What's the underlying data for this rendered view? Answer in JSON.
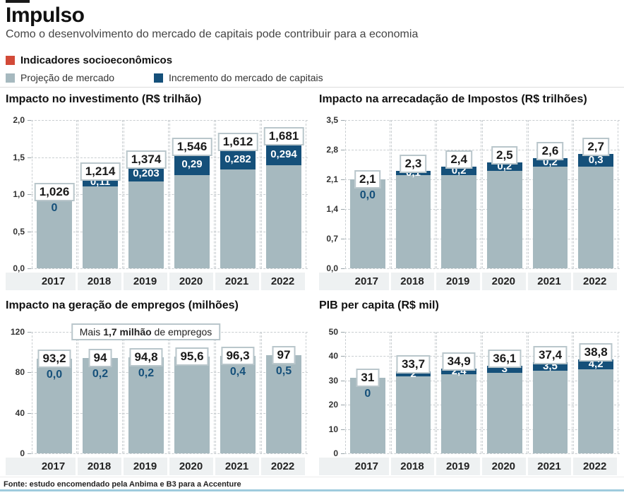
{
  "header": {
    "title": "Impulso",
    "subtitle": "Como o desenvolvimento do mercado de capitais pode contribuir para a economia"
  },
  "legend": {
    "section_label": "Indicadores socioeconômicos",
    "section_color": "#d24a38",
    "items": [
      {
        "label": "Projeção de mercado",
        "color": "#a6b9bf"
      },
      {
        "label": "Incremento do mercado de capitais",
        "color": "#15507a"
      }
    ]
  },
  "colors": {
    "market_projection": "#a6b9bf",
    "capital_market_increment": "#15507a",
    "section_red": "#d24a38",
    "axis_band": "#eef1f2",
    "label_box_border": "#b9c6cb",
    "gridline": "#c9ced1",
    "footer_rule": "#9fcbdd"
  },
  "chart_data": [
    {
      "type": "bar",
      "stacked": true,
      "title": "Impacto no investimento (R$ trilhão)",
      "categories": [
        "2017",
        "2018",
        "2019",
        "2020",
        "2021",
        "2022"
      ],
      "ymax": 2.0,
      "ytick_values": [
        2.0,
        1.5,
        1.0,
        0.5,
        0.0
      ],
      "ytick_labels": [
        "2,0",
        "1,5",
        "1,0",
        "0,5",
        "0,0"
      ],
      "series": [
        {
          "name": "Projeção de mercado",
          "values": [
            1.026,
            1.104,
            1.171,
            1.256,
            1.33,
            1.387
          ]
        },
        {
          "name": "Incremento do mercado de capitais",
          "values": [
            0,
            0.11,
            0.203,
            0.29,
            0.282,
            0.294
          ]
        }
      ],
      "totals": [
        1.026,
        1.214,
        1.374,
        1.546,
        1.612,
        1.681
      ],
      "total_labels": [
        "1,026",
        "1,214",
        "1,374",
        "1,546",
        "1,612",
        "1,681"
      ],
      "increments": [
        0,
        0.11,
        0.203,
        0.29,
        0.282,
        0.294
      ],
      "increment_labels": [
        "0",
        "0,11",
        "0,203",
        "0,29",
        "0,282",
        "0,294"
      ],
      "annotation": null,
      "grid": true,
      "legend_position": "top"
    },
    {
      "type": "bar",
      "stacked": true,
      "title": "Impacto na arrecadação de Impostos (R$ trilhões)",
      "categories": [
        "2017",
        "2018",
        "2019",
        "2020",
        "2021",
        "2022"
      ],
      "ymax": 3.5,
      "ytick_values": [
        3.5,
        2.8,
        2.1,
        1.4,
        0.7,
        0.0
      ],
      "ytick_labels": [
        "3,5",
        "2,8",
        "2,1",
        "1,4",
        "0,7",
        "0,0"
      ],
      "series": [
        {
          "name": "Projeção de mercado",
          "values": [
            2.1,
            2.2,
            2.2,
            2.3,
            2.4,
            2.4
          ]
        },
        {
          "name": "Incremento do mercado de capitais",
          "values": [
            0,
            0.1,
            0.2,
            0.2,
            0.2,
            0.3
          ]
        }
      ],
      "totals": [
        2.1,
        2.3,
        2.4,
        2.5,
        2.6,
        2.7
      ],
      "total_labels": [
        "2,1",
        "2,3",
        "2,4",
        "2,5",
        "2,6",
        "2,7"
      ],
      "increments": [
        0,
        0.1,
        0.2,
        0.2,
        0.2,
        0.3
      ],
      "increment_labels": [
        "0,0",
        "0,1",
        "0,2",
        "0,2",
        "0,2",
        "0,3"
      ],
      "annotation": null,
      "grid": true,
      "legend_position": "top"
    },
    {
      "type": "bar",
      "stacked": true,
      "title": "Impacto na geração de empregos (milhões)",
      "categories": [
        "2017",
        "2018",
        "2019",
        "2020",
        "2021",
        "2022"
      ],
      "ymax": 120,
      "ytick_values": [
        120,
        80,
        40,
        0
      ],
      "ytick_labels": [
        "120",
        "80",
        "40",
        "0"
      ],
      "series": [
        {
          "name": "Projeção de mercado",
          "values": [
            93.2,
            93.8,
            94.6,
            95.6,
            95.9,
            96.5
          ]
        },
        {
          "name": "Incremento do mercado de capitais",
          "values": [
            0,
            0.2,
            0.2,
            null,
            0.4,
            0.5
          ]
        }
      ],
      "totals": [
        93.2,
        94,
        94.8,
        95.6,
        96.3,
        97
      ],
      "total_labels": [
        "93,2",
        "94",
        "94,8",
        "95,6",
        "96,3",
        "97"
      ],
      "increments": [
        0,
        0.2,
        0.2,
        null,
        0.4,
        0.5
      ],
      "increment_labels": [
        "0,0",
        "0,2",
        "0,2",
        "",
        "0,4",
        "0,5"
      ],
      "annotation": {
        "prefix": "Mais ",
        "bold": "1,7 milhão",
        "suffix": " de empregos"
      },
      "grid": true,
      "legend_position": "top"
    },
    {
      "type": "bar",
      "stacked": true,
      "title": "PIB per capita (R$ mil)",
      "categories": [
        "2017",
        "2018",
        "2019",
        "2020",
        "2021",
        "2022"
      ],
      "ymax": 50,
      "ytick_values": [
        50,
        40,
        30,
        20,
        10,
        0
      ],
      "ytick_labels": [
        "50",
        "40",
        "30",
        "20",
        "10",
        "0"
      ],
      "series": [
        {
          "name": "Projeção de mercado",
          "values": [
            31,
            31.7,
            32.5,
            33.1,
            33.9,
            34.6
          ]
        },
        {
          "name": "Incremento do mercado de capitais",
          "values": [
            0,
            2,
            2.4,
            3,
            3.5,
            4.2
          ]
        }
      ],
      "totals": [
        31,
        33.7,
        34.9,
        36.1,
        37.4,
        38.8
      ],
      "total_labels": [
        "31",
        "33,7",
        "34,9",
        "36,1",
        "37,4",
        "38,8"
      ],
      "increments": [
        0,
        2,
        2.4,
        3,
        3.5,
        4.2
      ],
      "increment_labels": [
        "0",
        "2",
        "2,4",
        "3",
        "3,5",
        "4,2"
      ],
      "annotation": null,
      "grid": true,
      "legend_position": "top"
    }
  ],
  "footer": {
    "source": "Fonte: estudo encomendado pela Anbima e B3 para a Accenture"
  }
}
